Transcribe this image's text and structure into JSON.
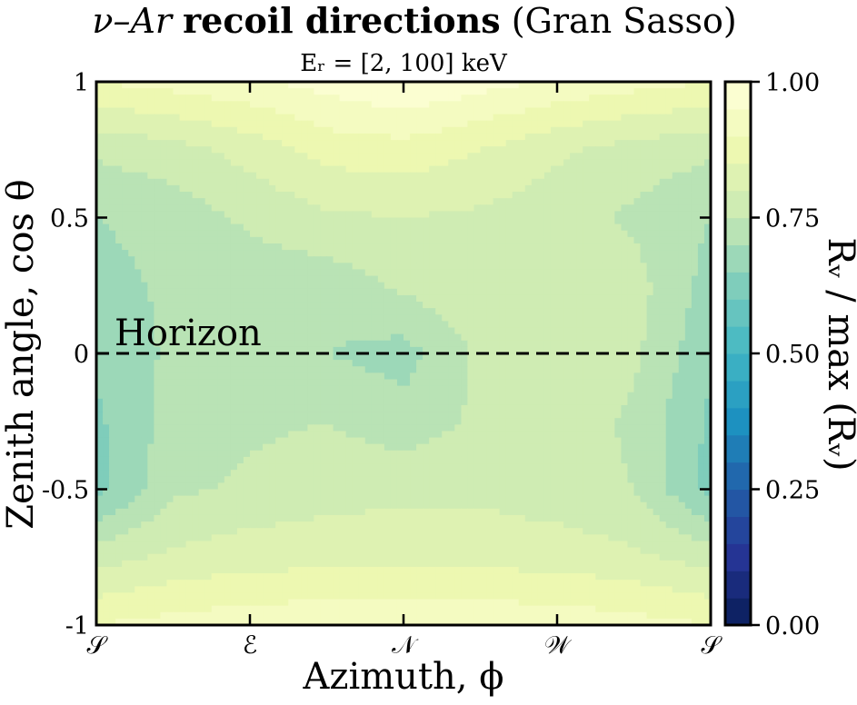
{
  "chart_data": {
    "type": "heatmap",
    "title_prefix": "ν–Ar ",
    "title_bold": "recoil directions",
    "title_suffix": " (Gran Sasso)",
    "subtitle": "Eᵣ = [2, 100] keV",
    "xlabel": "Azimuth, ϕ",
    "ylabel": "Zenith angle, cos θ",
    "x_tick_labels": [
      "𝒮",
      "ℰ",
      "𝒩",
      "𝒲",
      "𝒮"
    ],
    "y_tick_labels": [
      "1",
      "0.5",
      "0",
      "-0.5",
      "-1"
    ],
    "ylim": [
      -1,
      1
    ],
    "annotation": "Horizon",
    "horizon_y": 0,
    "colorbar": {
      "label": "Rᵥ / max (Rᵥ)",
      "ticks": [
        "1.00",
        "0.75",
        "0.50",
        "0.25",
        "0.00"
      ],
      "range": [
        0,
        1
      ],
      "levels": 20,
      "colormap": "YlGnBu"
    },
    "grid": {
      "x": [
        0,
        0.125,
        0.25,
        0.375,
        0.5,
        0.625,
        0.75,
        0.875,
        1.0
      ],
      "y": [
        1.0,
        0.75,
        0.5,
        0.25,
        0.0,
        -0.25,
        -0.5,
        -0.75,
        -1.0
      ],
      "z": [
        [
          0.9,
          0.92,
          0.94,
          0.97,
          1.0,
          0.97,
          0.94,
          0.92,
          0.9
        ],
        [
          0.76,
          0.78,
          0.82,
          0.87,
          0.88,
          0.85,
          0.81,
          0.78,
          0.76
        ],
        [
          0.7,
          0.72,
          0.76,
          0.79,
          0.8,
          0.79,
          0.77,
          0.74,
          0.7
        ],
        [
          0.68,
          0.71,
          0.72,
          0.72,
          0.76,
          0.79,
          0.8,
          0.77,
          0.68
        ],
        [
          0.66,
          0.71,
          0.72,
          0.7,
          0.68,
          0.76,
          0.79,
          0.76,
          0.66
        ],
        [
          0.64,
          0.72,
          0.74,
          0.75,
          0.72,
          0.76,
          0.78,
          0.74,
          0.64
        ],
        [
          0.63,
          0.74,
          0.76,
          0.78,
          0.79,
          0.79,
          0.77,
          0.75,
          0.63
        ],
        [
          0.78,
          0.81,
          0.83,
          0.83,
          0.83,
          0.83,
          0.83,
          0.81,
          0.78
        ],
        [
          0.9,
          0.92,
          0.93,
          0.94,
          0.94,
          0.94,
          0.93,
          0.92,
          0.9
        ]
      ]
    }
  }
}
